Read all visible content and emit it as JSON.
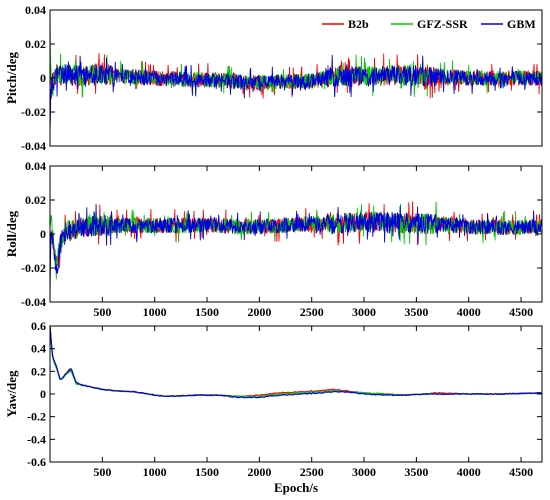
{
  "chart_data": [
    {
      "type": "line",
      "title": "",
      "xlabel": "",
      "ylabel": "Pitch/deg",
      "xlim": [
        0,
        4700
      ],
      "ylim": [
        -0.04,
        0.04
      ],
      "yticks": [
        -0.04,
        -0.02,
        0,
        0.02,
        0.04
      ],
      "ytick_labels": [
        "-0.04",
        "-0.02",
        "0",
        "0.02",
        "0.04"
      ],
      "xticks": [],
      "xtick_labels": [],
      "legend": {
        "position": "top-right",
        "entries": [
          "B2b",
          "GFZ-SSR",
          "GBM"
        ]
      },
      "series": [
        {
          "name": "B2b",
          "color": "#ff0000",
          "x": [
            0,
            5,
            15,
            30,
            60,
            100,
            200,
            300,
            500,
            700,
            1000,
            1300,
            1600,
            1900,
            2200,
            2500,
            2700,
            3000,
            3300,
            3500,
            3700,
            4000,
            4300,
            4700
          ],
          "y": [
            -0.01,
            0.005,
            -0.005,
            -0.002,
            0.003,
            0.002,
            0.002,
            0.001,
            0.003,
            0.001,
            0,
            -0.001,
            -0.001,
            -0.003,
            -0.002,
            -0.002,
            0.001,
            0.001,
            0.002,
            0.001,
            0.001,
            0,
            0,
            0
          ]
        },
        {
          "name": "GFZ-SSR",
          "color": "#00cc00",
          "x": [
            0,
            5,
            15,
            30,
            60,
            100,
            200,
            300,
            500,
            700,
            1000,
            1300,
            1600,
            1900,
            2200,
            2500,
            2700,
            3000,
            3300,
            3500,
            3700,
            4000,
            4300,
            4700
          ],
          "y": [
            0.038,
            0.01,
            -0.01,
            -0.004,
            0.002,
            0.002,
            0.002,
            0.001,
            0.002,
            0.001,
            0,
            -0.001,
            -0.001,
            -0.003,
            -0.002,
            -0.002,
            0.001,
            0.001,
            0.002,
            0.001,
            0.001,
            0,
            0,
            0
          ]
        },
        {
          "name": "GBM",
          "color": "#0000dd",
          "x": [
            0,
            5,
            15,
            30,
            60,
            100,
            200,
            300,
            500,
            700,
            1000,
            1300,
            1600,
            1900,
            2200,
            2500,
            2700,
            3000,
            3300,
            3500,
            3700,
            4000,
            4300,
            4700
          ],
          "y": [
            -0.035,
            -0.015,
            -0.005,
            -0.002,
            0.002,
            0.002,
            0.002,
            0.001,
            0.002,
            0.001,
            0,
            -0.001,
            -0.001,
            -0.003,
            -0.002,
            -0.002,
            0.001,
            0.001,
            0.002,
            0.001,
            0.001,
            0,
            0,
            0
          ]
        }
      ]
    },
    {
      "type": "line",
      "title": "",
      "xlabel": "",
      "ylabel": "Roll/deg",
      "xlim": [
        0,
        4700
      ],
      "ylim": [
        -0.04,
        0.04
      ],
      "yticks": [
        -0.04,
        -0.02,
        0,
        0.02,
        0.04
      ],
      "ytick_labels": [
        "-0.04",
        "-0.02",
        "0",
        "0.02",
        "0.04"
      ],
      "xticks": [
        500,
        1000,
        1500,
        2000,
        2500,
        3000,
        3500,
        4000,
        4500
      ],
      "xtick_labels": [
        "500",
        "1000",
        "1500",
        "2000",
        "2500",
        "3000",
        "3500",
        "4000",
        "4500"
      ],
      "series": [
        {
          "name": "B2b",
          "color": "#ff0000",
          "x": [
            0,
            10,
            30,
            60,
            100,
            150,
            300,
            500,
            700,
            1000,
            1300,
            1600,
            1900,
            2200,
            2500,
            2700,
            3000,
            3300,
            3500,
            3700,
            4000,
            4300,
            4700
          ],
          "y": [
            -0.01,
            0.008,
            -0.005,
            -0.02,
            -0.005,
            0.002,
            0.004,
            0.005,
            0.005,
            0.005,
            0.005,
            0.005,
            0.004,
            0.005,
            0.006,
            0.006,
            0.007,
            0.007,
            0.006,
            0.006,
            0.004,
            0.004,
            0.004
          ]
        },
        {
          "name": "GFZ-SSR",
          "color": "#00cc00",
          "x": [
            0,
            10,
            30,
            60,
            100,
            150,
            300,
            500,
            700,
            1000,
            1300,
            1600,
            1900,
            2200,
            2500,
            2700,
            3000,
            3300,
            3500,
            3700,
            4000,
            4300,
            4700
          ],
          "y": [
            0.01,
            0.01,
            -0.004,
            -0.018,
            -0.004,
            0.002,
            0.004,
            0.005,
            0.005,
            0.005,
            0.005,
            0.005,
            0.004,
            0.005,
            0.006,
            0.006,
            0.007,
            0.007,
            0.006,
            0.006,
            0.004,
            0.004,
            0.004
          ]
        },
        {
          "name": "GBM",
          "color": "#0000dd",
          "x": [
            0,
            10,
            30,
            60,
            100,
            150,
            300,
            500,
            700,
            1000,
            1300,
            1600,
            1900,
            2200,
            2500,
            2700,
            3000,
            3300,
            3500,
            3700,
            4000,
            4300,
            4700
          ],
          "y": [
            -0.04,
            0.005,
            -0.006,
            -0.024,
            -0.006,
            0.001,
            0.004,
            0.005,
            0.005,
            0.005,
            0.005,
            0.005,
            0.004,
            0.005,
            0.006,
            0.006,
            0.007,
            0.007,
            0.006,
            0.006,
            0.004,
            0.004,
            0.004
          ]
        }
      ]
    },
    {
      "type": "line",
      "title": "",
      "xlabel": "Epoch/s",
      "ylabel": "Yaw/deg",
      "xlim": [
        0,
        4700
      ],
      "ylim": [
        -0.6,
        0.6
      ],
      "yticks": [
        -0.6,
        -0.4,
        -0.2,
        0,
        0.2,
        0.4,
        0.6
      ],
      "ytick_labels": [
        "-0.6",
        "-0.4",
        "-0.2",
        "0",
        "0.2",
        "0.4",
        "0.6"
      ],
      "xticks": [
        500,
        1000,
        1500,
        2000,
        2500,
        3000,
        3500,
        4000,
        4500
      ],
      "xtick_labels": [
        "500",
        "1000",
        "1500",
        "2000",
        "2500",
        "3000",
        "3500",
        "4000",
        "4500"
      ],
      "series": [
        {
          "name": "B2b",
          "color": "#ff0000",
          "x": [
            0,
            20,
            40,
            60,
            100,
            150,
            200,
            250,
            300,
            400,
            500,
            600,
            800,
            1000,
            1100,
            1200,
            1400,
            1600,
            1800,
            2000,
            2200,
            2400,
            2600,
            2700,
            2800,
            3000,
            3200,
            3400,
            3600,
            3700,
            4000,
            4300,
            4700
          ],
          "y": [
            0.6,
            0.35,
            0.28,
            0.24,
            0.12,
            0.17,
            0.22,
            0.09,
            0.08,
            0.06,
            0.04,
            0.03,
            0.02,
            -0.01,
            -0.02,
            -0.02,
            -0.01,
            -0.01,
            -0.02,
            -0.01,
            0.01,
            0.02,
            0.03,
            0.04,
            0.03,
            0.01,
            0,
            -0.01,
            0,
            0.01,
            0,
            0,
            0.01
          ]
        },
        {
          "name": "GFZ-SSR",
          "color": "#00cc00",
          "x": [
            0,
            20,
            40,
            60,
            100,
            150,
            200,
            250,
            300,
            400,
            500,
            600,
            800,
            1000,
            1100,
            1200,
            1400,
            1600,
            1800,
            2000,
            2200,
            2400,
            2600,
            2700,
            2800,
            3000,
            3200,
            3400,
            3600,
            3700,
            4000,
            4300,
            4700
          ],
          "y": [
            0.6,
            0.34,
            0.27,
            0.23,
            0.12,
            0.17,
            0.21,
            0.09,
            0.08,
            0.06,
            0.04,
            0.03,
            0.02,
            -0.01,
            -0.02,
            -0.02,
            -0.01,
            -0.01,
            -0.02,
            -0.02,
            0,
            0.01,
            0.02,
            0.03,
            0.02,
            0.01,
            0,
            -0.01,
            0,
            0,
            0,
            0,
            0.01
          ]
        },
        {
          "name": "GBM",
          "color": "#0000dd",
          "x": [
            0,
            20,
            40,
            60,
            100,
            150,
            200,
            250,
            300,
            400,
            500,
            600,
            800,
            1000,
            1100,
            1200,
            1400,
            1600,
            1800,
            2000,
            2200,
            2400,
            2600,
            2700,
            2800,
            3000,
            3200,
            3400,
            3600,
            3700,
            4000,
            4300,
            4700
          ],
          "y": [
            0.6,
            0.36,
            0.29,
            0.25,
            0.12,
            0.18,
            0.23,
            0.1,
            0.08,
            0.06,
            0.04,
            0.03,
            0.02,
            -0.01,
            -0.02,
            -0.02,
            -0.01,
            -0.01,
            -0.03,
            -0.03,
            -0.01,
            0,
            0.01,
            0.02,
            0.02,
            0,
            -0.01,
            -0.01,
            0,
            0,
            0,
            0,
            0.01
          ]
        }
      ]
    }
  ]
}
